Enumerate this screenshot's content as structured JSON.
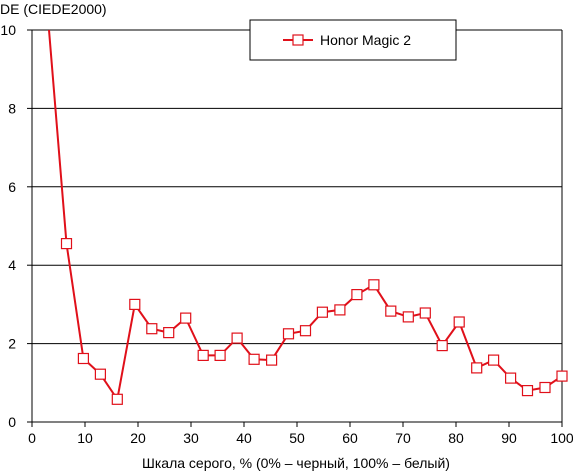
{
  "chart_data": {
    "type": "line",
    "title": "",
    "ylabel": "DE (CIEDE2000)",
    "xlabel": "Шкала серого, % (0% – черный, 100% – белый)",
    "xlim": [
      0,
      100
    ],
    "ylim": [
      0,
      10
    ],
    "x_ticks": [
      "0",
      "10",
      "20",
      "30",
      "40",
      "50",
      "60",
      "70",
      "80",
      "90",
      "100"
    ],
    "y_ticks": [
      "0",
      "2",
      "4",
      "6",
      "8",
      "10"
    ],
    "grid": "horizontal",
    "legend_position": "top-center",
    "series": [
      {
        "name": "Honor Magic 2",
        "color": "#e0101a",
        "marker": "open-square",
        "line_start": {
          "x": 3.2,
          "y": 10.0
        },
        "x": [
          6.5,
          9.7,
          12.9,
          16.1,
          19.4,
          22.6,
          25.8,
          29.0,
          32.3,
          35.5,
          38.7,
          41.9,
          45.2,
          48.4,
          51.6,
          54.8,
          58.1,
          61.3,
          64.5,
          67.7,
          71.0,
          74.2,
          77.4,
          80.6,
          83.9,
          87.1,
          90.3,
          93.5,
          96.8,
          100.0
        ],
        "y": [
          4.55,
          1.62,
          1.22,
          0.58,
          3.0,
          2.38,
          2.28,
          2.65,
          1.7,
          1.7,
          2.14,
          1.6,
          1.58,
          2.25,
          2.33,
          2.8,
          2.86,
          3.25,
          3.5,
          2.83,
          2.68,
          2.78,
          1.95,
          2.55,
          1.38,
          1.58,
          1.12,
          0.8,
          0.88,
          1.17
        ]
      }
    ]
  }
}
